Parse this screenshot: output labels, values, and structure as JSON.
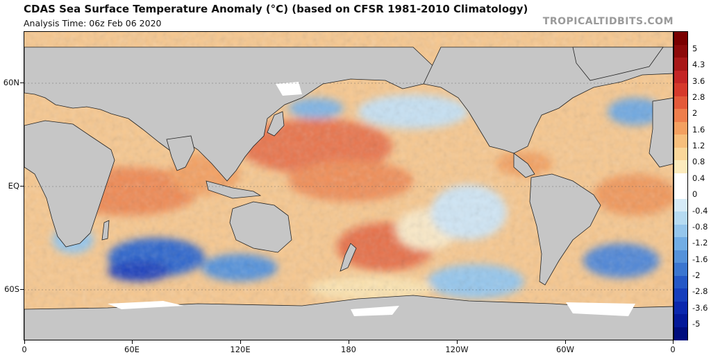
{
  "header": {
    "title": "CDAS Sea Surface Temperature Anomaly (°C) (based on CFSR 1981-2010 Climatology)",
    "subtitle": "Analysis Time: 06z Feb 06 2020",
    "brand": "TROPICALTIDBITS.COM"
  },
  "map": {
    "projection": "equirectangular, 0° to 360° longitude",
    "land_color": "#c6c6c6",
    "sea_ice_color": "#ffffff",
    "latitude_labels": [
      "60N",
      "EQ",
      "60S"
    ],
    "longitude_labels": [
      "0",
      "60E",
      "120E",
      "180",
      "120W",
      "60W",
      "0"
    ]
  },
  "colorbar": {
    "units": "°C",
    "labels": [
      "5",
      "4.3",
      "3.6",
      "2.8",
      "2",
      "1.6",
      "1.2",
      "0.8",
      "0.4",
      "0",
      "-0.4",
      "-0.8",
      "-1.2",
      "-1.6",
      "-2",
      "-2.8",
      "-3.6",
      "-5"
    ],
    "colors": [
      "#7a0000",
      "#8c0a0a",
      "#a81818",
      "#c42626",
      "#d63a2c",
      "#e35a3a",
      "#ee7e4c",
      "#f3a060",
      "#f7bf7c",
      "#fad79a",
      "#fcebbd",
      "#ffffff",
      "#ffffff",
      "#d6ebf7",
      "#b6dbf2",
      "#95c6ec",
      "#72ade4",
      "#5592da",
      "#3b76d0",
      "#2558c6",
      "#163ebc",
      "#0b28ae",
      "#041999",
      "#000d7e"
    ]
  }
}
